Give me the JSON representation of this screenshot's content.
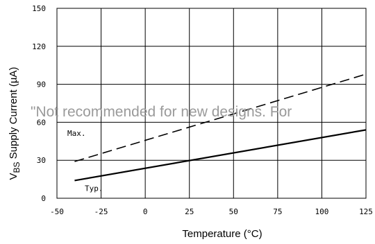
{
  "chart_data": {
    "type": "line",
    "title": "",
    "xlabel": "Temperature (°C)",
    "ylabel_main": "V",
    "ylabel_sub": "BS",
    "ylabel_rest": " Supply Current  (µA)",
    "xlim": [
      -50,
      125
    ],
    "ylim": [
      0,
      150
    ],
    "x_ticks": [
      "-50",
      "-25",
      "0",
      "25",
      "50",
      "75",
      "100",
      "125"
    ],
    "y_ticks": [
      "0",
      "30",
      "60",
      "90",
      "120",
      "150"
    ],
    "grid": true,
    "series": [
      {
        "name": "Max.",
        "style": "dashed",
        "x": [
          -40,
          125
        ],
        "y": [
          29,
          98
        ]
      },
      {
        "name": "Typ.",
        "style": "solid",
        "x": [
          -40,
          125
        ],
        "y": [
          14,
          54
        ]
      }
    ]
  },
  "watermark": "\"Not recommended for new designs. For",
  "colors": {
    "line": "#000000",
    "grid": "#000000",
    "watermark": "#9a9a9a"
  }
}
